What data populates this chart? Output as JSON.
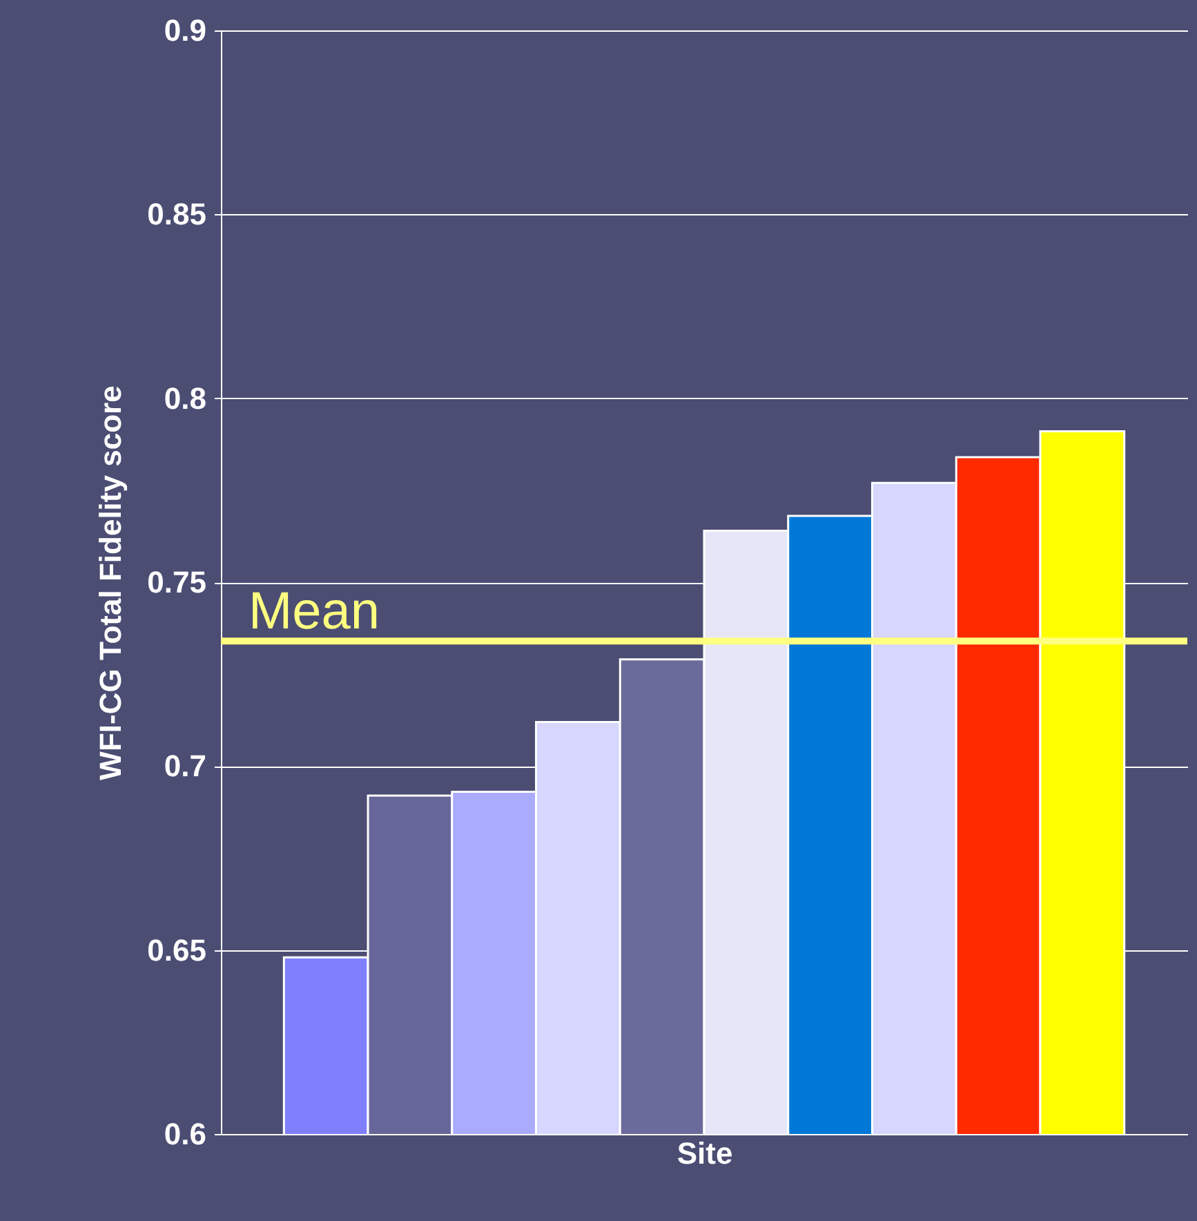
{
  "chart_data": {
    "type": "bar",
    "xlabel": "Site",
    "ylabel": "WFI-CG  Total Fidelity score",
    "categories": [
      null,
      null,
      null,
      null,
      null,
      null,
      null,
      null,
      null,
      null
    ],
    "values": [
      0.648,
      0.692,
      0.693,
      0.712,
      0.729,
      0.764,
      0.768,
      0.777,
      0.784,
      0.791
    ],
    "colors": [
      "#8080ff",
      "#666699",
      "#aaaaff",
      "#d6d6ff",
      "#6b6b9b",
      "#e6e6f8",
      "#0078d7",
      "#d6d6ff",
      "#ff2a00",
      "#ffff00"
    ],
    "ylim": [
      0.6,
      0.9
    ],
    "yticks": [
      0.6,
      0.65,
      0.7,
      0.75,
      0.8,
      0.85,
      0.9
    ],
    "grid": "y",
    "tick_labels": "y",
    "ref_lines": [
      {
        "axis": "y",
        "value": 0.734,
        "label": "Mean",
        "color": "#ffff80"
      }
    ]
  }
}
